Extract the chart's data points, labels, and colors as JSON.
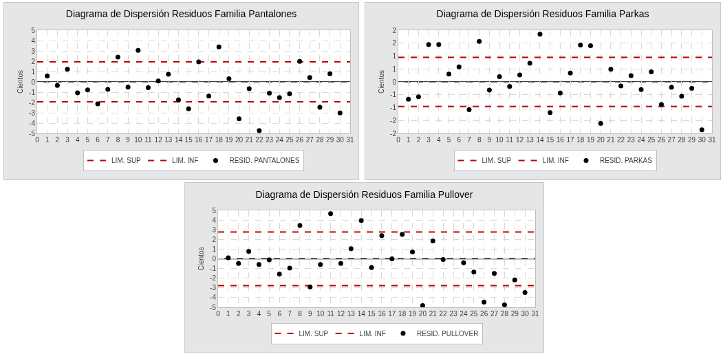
{
  "chart_data": [
    {
      "type": "scatter",
      "title": "Diagrama de Dispersión Residuos Familia Pantalones",
      "ylabel": "Cientos",
      "xlim": [
        0,
        31
      ],
      "xticks": [
        0,
        1,
        2,
        3,
        4,
        5,
        6,
        7,
        8,
        9,
        10,
        11,
        12,
        13,
        14,
        15,
        16,
        17,
        18,
        19,
        20,
        21,
        22,
        23,
        24,
        25,
        26,
        27,
        28,
        29,
        30,
        31
      ],
      "ylim": [
        -5,
        5
      ],
      "yticks": [
        -5,
        -4,
        -3,
        -2,
        -1,
        0,
        1,
        2,
        3,
        4,
        5
      ],
      "grid": true,
      "legend": "bottom",
      "ref_lines": [
        {
          "axis": "y",
          "value": 0,
          "color": "#000000"
        }
      ],
      "series": [
        {
          "name": "LIM. SUP",
          "type": "line",
          "color": "#c00000",
          "line_style": "dashed",
          "marker": "none",
          "x": [
            0,
            31
          ],
          "values": [
            1.93,
            1.93
          ]
        },
        {
          "name": "LIM. INF",
          "type": "line",
          "color": "#c00000",
          "line_style": "dashed",
          "marker": "none",
          "x": [
            0,
            31
          ],
          "values": [
            -1.93,
            -1.93
          ]
        },
        {
          "name": "RESID. PANTALONES",
          "color": "#000000",
          "marker": "circle",
          "x": [
            1,
            2,
            3,
            4,
            5,
            6,
            7,
            8,
            9,
            10,
            11,
            12,
            13,
            14,
            15,
            16,
            17,
            18,
            19,
            20,
            21,
            22,
            23,
            24,
            25,
            26,
            27,
            28,
            29,
            30
          ],
          "values": [
            0.56,
            -0.35,
            1.21,
            -1.06,
            -0.78,
            -2.14,
            -0.74,
            2.4,
            -0.52,
            3.05,
            -0.56,
            0.09,
            0.74,
            -1.75,
            -2.62,
            1.93,
            -1.39,
            3.38,
            0.3,
            -3.59,
            -0.67,
            -4.74,
            -1.1,
            -1.54,
            -1.17,
            1.99,
            0.41,
            -2.47,
            0.78,
            -3.01
          ]
        }
      ]
    },
    {
      "type": "scatter",
      "title": "Diagrama de Dispersión Residuos Familia Parkas",
      "ylabel": "Cientos",
      "xlim": [
        0,
        31
      ],
      "xticks": [
        0,
        1,
        2,
        3,
        4,
        5,
        6,
        7,
        8,
        9,
        10,
        11,
        12,
        13,
        14,
        15,
        16,
        17,
        18,
        19,
        20,
        21,
        22,
        23,
        24,
        25,
        26,
        27,
        28,
        29,
        30,
        31
      ],
      "ylim": [
        -2,
        2
      ],
      "yticks": [
        {
          "value": -2,
          "label": "-2"
        },
        {
          "value": -1.5,
          "label": "-2"
        },
        {
          "value": -1,
          "label": "-1"
        },
        {
          "value": -0.5,
          "label": "-1"
        },
        {
          "value": 0,
          "label": "0"
        },
        {
          "value": 0.5,
          "label": "1"
        },
        {
          "value": 1,
          "label": "1"
        },
        {
          "value": 1.5,
          "label": "2"
        },
        {
          "value": 2,
          "label": "2"
        }
      ],
      "grid": true,
      "legend": "bottom",
      "ref_lines": [
        {
          "axis": "y",
          "value": 0,
          "color": "#000000"
        }
      ],
      "series": [
        {
          "name": "LIM. SUP",
          "type": "line",
          "color": "#c00000",
          "line_style": "dashed",
          "marker": "none",
          "x": [
            0,
            31
          ],
          "values": [
            0.95,
            0.95
          ]
        },
        {
          "name": "LIM. INF",
          "type": "line",
          "color": "#c00000",
          "line_style": "dashed",
          "marker": "none",
          "x": [
            0,
            31
          ],
          "values": [
            -0.95,
            -0.95
          ]
        },
        {
          "name": "RESID. PARKAS",
          "color": "#000000",
          "marker": "circle",
          "x": [
            1,
            2,
            3,
            4,
            5,
            6,
            7,
            8,
            9,
            10,
            11,
            12,
            13,
            14,
            15,
            16,
            17,
            18,
            19,
            20,
            21,
            22,
            23,
            24,
            25,
            26,
            27,
            28,
            29,
            30
          ],
          "values": [
            -0.67,
            -0.58,
            1.45,
            1.45,
            0.3,
            0.58,
            -1.08,
            1.57,
            -0.32,
            0.2,
            -0.18,
            0.27,
            0.72,
            1.85,
            -1.19,
            -0.43,
            0.34,
            1.43,
            1.4,
            -1.61,
            0.49,
            -0.16,
            0.24,
            -0.3,
            0.39,
            -0.88,
            -0.21,
            -0.56,
            -0.25,
            -1.86
          ]
        }
      ]
    },
    {
      "type": "scatter",
      "title": "Diagrama de Dispersión Residuos Familia Pullover",
      "ylabel": "Cientos",
      "xlim": [
        0,
        31
      ],
      "xticks": [
        0,
        1,
        2,
        3,
        4,
        5,
        6,
        7,
        8,
        9,
        10,
        11,
        12,
        13,
        14,
        15,
        16,
        17,
        18,
        19,
        20,
        21,
        22,
        23,
        24,
        25,
        26,
        27,
        28,
        29,
        30,
        31
      ],
      "ylim": [
        -5,
        5
      ],
      "yticks": [
        -5,
        -4,
        -3,
        -2,
        -1,
        0,
        1,
        2,
        3,
        4,
        5
      ],
      "grid": true,
      "legend": "bottom",
      "ref_lines": [
        {
          "axis": "y",
          "value": 0,
          "color": "#000000"
        }
      ],
      "series": [
        {
          "name": "LIM. SUP",
          "type": "line",
          "color": "#c00000",
          "line_style": "dashed",
          "marker": "none",
          "x": [
            0,
            31
          ],
          "values": [
            2.77,
            2.77
          ]
        },
        {
          "name": "LIM. INF",
          "type": "line",
          "color": "#c00000",
          "line_style": "dashed",
          "marker": "none",
          "x": [
            0,
            31
          ],
          "values": [
            -2.77,
            -2.77
          ]
        },
        {
          "name": "RESID. PULLOVER",
          "color": "#000000",
          "marker": "circle",
          "x": [
            1,
            2,
            3,
            4,
            5,
            6,
            7,
            8,
            9,
            10,
            11,
            12,
            13,
            14,
            15,
            16,
            17,
            18,
            19,
            20,
            21,
            22,
            23,
            24,
            25,
            26,
            27,
            28,
            29,
            30
          ],
          "values": [
            0.11,
            -0.47,
            0.76,
            -0.58,
            -0.11,
            -1.58,
            -0.96,
            3.44,
            -2.91,
            -0.58,
            4.67,
            -0.47,
            1.04,
            3.96,
            -0.91,
            2.4,
            0,
            2.51,
            0.71,
            -4.82,
            1.84,
            -0.07,
            null,
            -0.4,
            -1.36,
            -4.47,
            -1.51,
            -4.76,
            -2.18,
            -3.47
          ]
        }
      ]
    }
  ]
}
